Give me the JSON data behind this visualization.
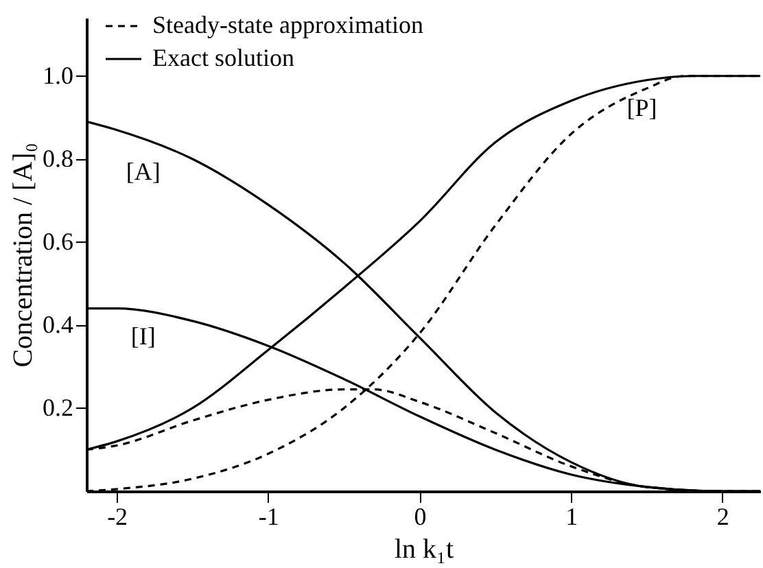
{
  "chart_data": {
    "type": "line",
    "xlabel": "ln k₁t",
    "ylabel": "Concentration / [A]₀",
    "xlim": [
      -2.2,
      2.25
    ],
    "xticks": [
      -2,
      -1,
      0,
      1,
      2
    ],
    "ylim": [
      0,
      1.14
    ],
    "yticks": [
      0.2,
      0.4,
      0.6,
      0.8,
      {
        "value": 1,
        "label": "1.0"
      }
    ],
    "legend": "top left",
    "annotations": [
      "[A]",
      "[I]",
      "[P]"
    ],
    "series": [
      {
        "name": "Steady-state approximation",
        "color": "#000000",
        "line_style": "dashed",
        "x": [
          -2.2,
          -2,
          -1.5,
          -1,
          -0.5,
          -0.3,
          0,
          0.5,
          1,
          1.5,
          2,
          2.25
        ],
        "values": [
          0.1,
          0.11,
          0.17,
          0.22,
          0.245,
          0.245,
          0.215,
          0.14,
          0.06,
          0.01,
          0.0,
          0.0
        ]
      },
      {
        "color": "#000000",
        "line_style": "dashed",
        "x": [
          -2.2,
          -2,
          -1.5,
          -1,
          -0.5,
          0,
          0.5,
          1,
          1.5,
          1.75,
          2.25
        ],
        "values": [
          0.0,
          0.005,
          0.03,
          0.09,
          0.2,
          0.38,
          0.64,
          0.86,
          0.97,
          1.0,
          1.0
        ]
      },
      {
        "name": "Exact solution",
        "color": "#000000",
        "line_style": "solid",
        "x": [
          -2.2,
          -2,
          -1.5,
          -1,
          -0.5,
          0,
          0.5,
          1,
          1.5,
          2,
          2.25
        ],
        "values": [
          0.89,
          0.87,
          0.8,
          0.69,
          0.55,
          0.37,
          0.19,
          0.07,
          0.01,
          0.0,
          0.0
        ]
      },
      {
        "color": "#000000",
        "line_style": "solid",
        "x": [
          -2.2,
          -2,
          -1.5,
          -1,
          -0.5,
          0,
          0.5,
          1,
          1.5,
          2,
          2.25
        ],
        "values": [
          0.44,
          0.44,
          0.41,
          0.35,
          0.27,
          0.18,
          0.1,
          0.04,
          0.01,
          0.0,
          0.0
        ]
      },
      {
        "color": "#000000",
        "line_style": "solid",
        "x": [
          -2.2,
          -2,
          -1.5,
          -1,
          -0.5,
          0,
          0.5,
          1,
          1.5,
          1.8,
          2.25
        ],
        "values": [
          0.1,
          0.12,
          0.2,
          0.34,
          0.49,
          0.65,
          0.84,
          0.94,
          0.99,
          1.0,
          1.0
        ]
      }
    ]
  }
}
